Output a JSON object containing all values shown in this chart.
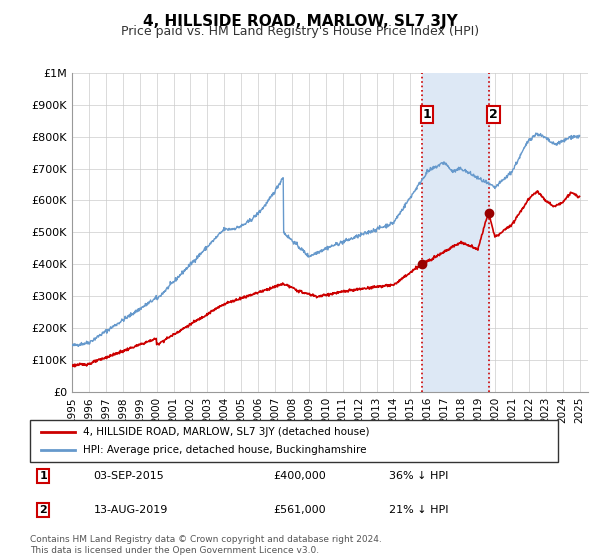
{
  "title": "4, HILLSIDE ROAD, MARLOW, SL7 3JY",
  "subtitle": "Price paid vs. HM Land Registry's House Price Index (HPI)",
  "background_color": "#ffffff",
  "plot_background": "#ffffff",
  "grid_color": "#cccccc",
  "xlabel": "",
  "ylabel": "",
  "ylim": [
    0,
    1000000
  ],
  "xlim_start": 1995.0,
  "xlim_end": 2025.5,
  "yticks": [
    0,
    100000,
    200000,
    300000,
    400000,
    500000,
    600000,
    700000,
    800000,
    900000,
    1000000
  ],
  "ytick_labels": [
    "£0",
    "£100K",
    "£200K",
    "£300K",
    "£400K",
    "£500K",
    "£600K",
    "£700K",
    "£800K",
    "£900K",
    "£1M"
  ],
  "xticks": [
    1995,
    1996,
    1997,
    1998,
    1999,
    2000,
    2001,
    2002,
    2003,
    2004,
    2005,
    2006,
    2007,
    2008,
    2009,
    2010,
    2011,
    2012,
    2013,
    2014,
    2015,
    2016,
    2017,
    2018,
    2019,
    2020,
    2021,
    2022,
    2023,
    2024,
    2025
  ],
  "sale1_x": 2015.67,
  "sale1_y": 400000,
  "sale1_label": "1",
  "sale2_x": 2019.62,
  "sale2_y": 561000,
  "sale2_label": "2",
  "shaded_region_x1": 2015.67,
  "shaded_region_x2": 2019.62,
  "shaded_color": "#dde8f5",
  "vline_color": "#cc0000",
  "vline_style": ":",
  "red_line_color": "#cc0000",
  "blue_line_color": "#6699cc",
  "legend_box_color": "#333333",
  "sale_marker_color": "#990000",
  "annotation1_date": "03-SEP-2015",
  "annotation1_price": "£400,000",
  "annotation1_hpi": "36% ↓ HPI",
  "annotation2_date": "13-AUG-2019",
  "annotation2_price": "£561,000",
  "annotation2_hpi": "21% ↓ HPI",
  "legend1_text": "4, HILLSIDE ROAD, MARLOW, SL7 3JY (detached house)",
  "legend2_text": "HPI: Average price, detached house, Buckinghamshire",
  "footer1": "Contains HM Land Registry data © Crown copyright and database right 2024.",
  "footer2": "This data is licensed under the Open Government Licence v3.0."
}
